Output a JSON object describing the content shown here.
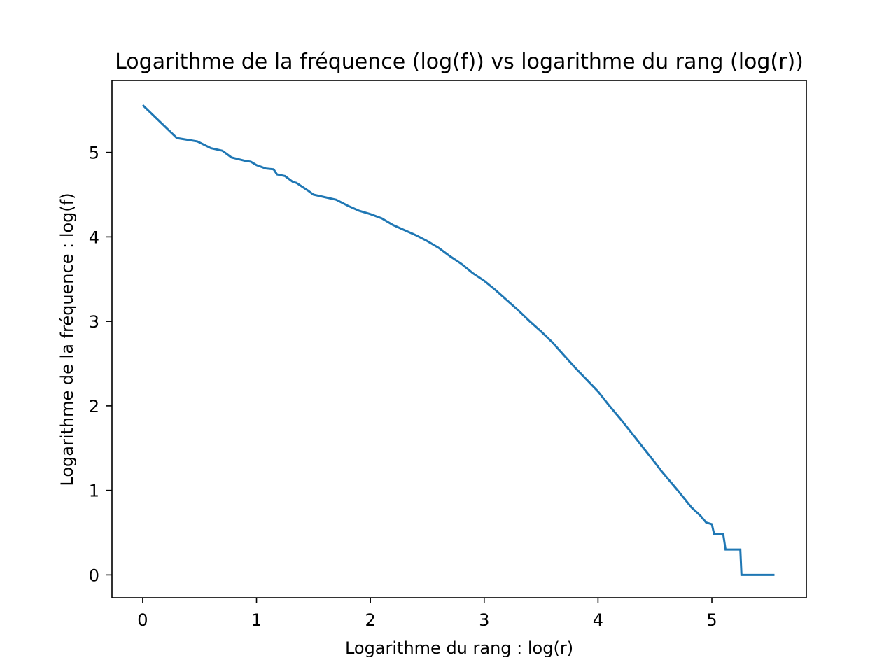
{
  "chart_data": {
    "type": "line",
    "title": "Logarithme de la fréquence (log(f)) vs logarithme du rang (log(r))",
    "xlabel": "Logarithme du rang : log(r)",
    "ylabel": "Logarithme de la fréquence : log(f)",
    "xlim": [
      -0.27,
      5.83
    ],
    "ylim": [
      -0.27,
      5.85
    ],
    "xticks": [
      0,
      1,
      2,
      3,
      4,
      5
    ],
    "yticks": [
      0,
      1,
      2,
      3,
      4,
      5
    ],
    "grid": false,
    "series": [
      {
        "color": "#1f77b4",
        "x": [
          0,
          0.3,
          0.48,
          0.6,
          0.7,
          0.78,
          0.9,
          0.95,
          1.0,
          1.08,
          1.15,
          1.18,
          1.25,
          1.32,
          1.35,
          1.45,
          1.5,
          1.6,
          1.7,
          1.8,
          1.9,
          2.0,
          2.1,
          2.2,
          2.3,
          2.4,
          2.5,
          2.6,
          2.7,
          2.8,
          2.9,
          3.0,
          3.1,
          3.2,
          3.3,
          3.4,
          3.5,
          3.6,
          3.7,
          3.8,
          3.9,
          4.0,
          4.1,
          4.2,
          4.3,
          4.4,
          4.5,
          4.55,
          4.6,
          4.65,
          4.7,
          4.73,
          4.76,
          4.79,
          4.82,
          4.86,
          4.9,
          4.95,
          5.0,
          5.02,
          5.1,
          5.12,
          5.25,
          5.26,
          5.55
        ],
        "y": [
          5.56,
          5.17,
          5.13,
          5.05,
          5.02,
          4.94,
          4.9,
          4.89,
          4.85,
          4.81,
          4.8,
          4.74,
          4.72,
          4.65,
          4.64,
          4.55,
          4.5,
          4.47,
          4.44,
          4.37,
          4.31,
          4.27,
          4.22,
          4.14,
          4.08,
          4.02,
          3.95,
          3.87,
          3.77,
          3.68,
          3.57,
          3.48,
          3.37,
          3.25,
          3.13,
          3.0,
          2.88,
          2.75,
          2.6,
          2.45,
          2.31,
          2.17,
          2.0,
          1.84,
          1.67,
          1.5,
          1.33,
          1.24,
          1.16,
          1.08,
          1.0,
          0.95,
          0.9,
          0.85,
          0.8,
          0.75,
          0.7,
          0.62,
          0.6,
          0.48,
          0.48,
          0.3,
          0.3,
          0.0,
          0.0
        ]
      }
    ]
  }
}
